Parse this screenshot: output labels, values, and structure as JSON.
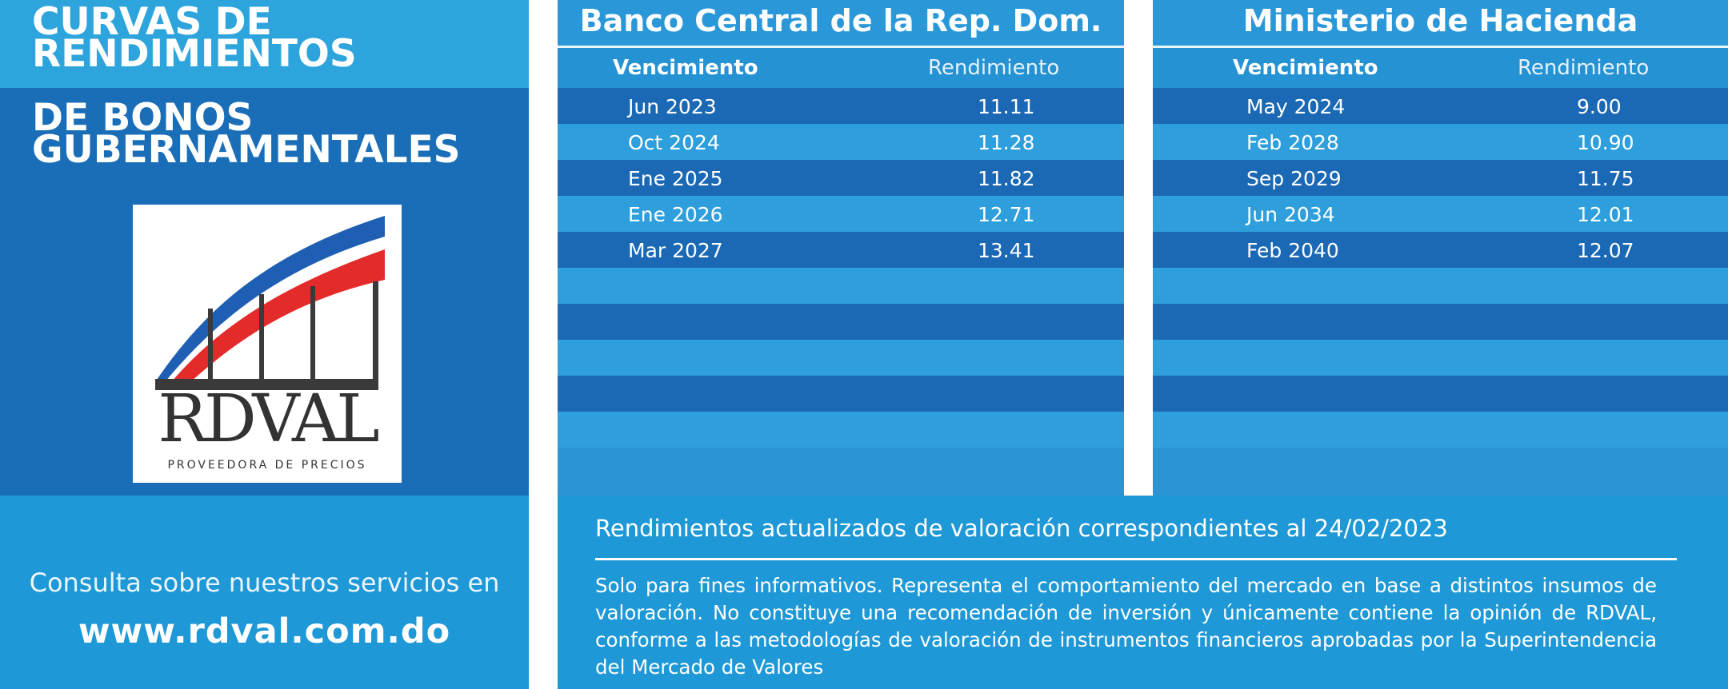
{
  "left": {
    "title": [
      "CURVAS DE",
      "RENDIMIENTOS",
      "DE BONOS",
      "GUBERNAMENTALES"
    ],
    "logo": {
      "word": "RDVAL",
      "subtitle": "PROVEEDORA DE PRECIOS"
    },
    "consulta": "Consulta sobre nuestros servicios en",
    "website": "www.rdval.com.do"
  },
  "bcrd": {
    "title": "Banco Central de la Rep. Dom.",
    "col_vencimiento": "Vencimiento",
    "col_rendimiento": "Rendimiento",
    "rows": [
      {
        "vencimiento": "Jun 2023",
        "rendimiento": "11.11"
      },
      {
        "vencimiento": "Oct 2024",
        "rendimiento": "11.28"
      },
      {
        "vencimiento": "Ene 2025",
        "rendimiento": "11.82"
      },
      {
        "vencimiento": "Ene 2026",
        "rendimiento": "12.71"
      },
      {
        "vencimiento": "Mar 2027",
        "rendimiento": "13.41"
      },
      {
        "vencimiento": "",
        "rendimiento": ""
      },
      {
        "vencimiento": "",
        "rendimiento": ""
      },
      {
        "vencimiento": "",
        "rendimiento": ""
      },
      {
        "vencimiento": "",
        "rendimiento": ""
      },
      {
        "vencimiento": "",
        "rendimiento": ""
      }
    ]
  },
  "mh": {
    "title": "Ministerio de Hacienda",
    "col_vencimiento": "Vencimiento",
    "col_rendimiento": "Rendimiento",
    "rows": [
      {
        "vencimiento": "May 2024",
        "rendimiento": "9.00"
      },
      {
        "vencimiento": "Feb 2028",
        "rendimiento": "10.90"
      },
      {
        "vencimiento": "Sep 2029",
        "rendimiento": "11.75"
      },
      {
        "vencimiento": "Jun 2034",
        "rendimiento": "12.01"
      },
      {
        "vencimiento": "Feb 2040",
        "rendimiento": "12.07"
      },
      {
        "vencimiento": "",
        "rendimiento": ""
      },
      {
        "vencimiento": "",
        "rendimiento": ""
      },
      {
        "vencimiento": "",
        "rendimiento": ""
      },
      {
        "vencimiento": "",
        "rendimiento": ""
      },
      {
        "vencimiento": "",
        "rendimiento": ""
      }
    ]
  },
  "notes": {
    "updated": "Rendimientos actualizados de valoración correspondientes al 24/02/2023",
    "disclaimer": "Solo para fines informativos. Representa el comportamiento del mercado en base a distintos insumos de valoración. No constituye una recomendación de inversión y únicamente contiene la opinión de RDVAL, conforme a las metodologías de valoración de instrumentos financieros aprobadas por la Superintendencia del Mercado de Valores"
  },
  "colors": {
    "dark_row": "#1b68b5",
    "light_row": "#2e9fdc",
    "logo_red": "#e32b2b",
    "logo_blue": "#1e5fb3"
  }
}
